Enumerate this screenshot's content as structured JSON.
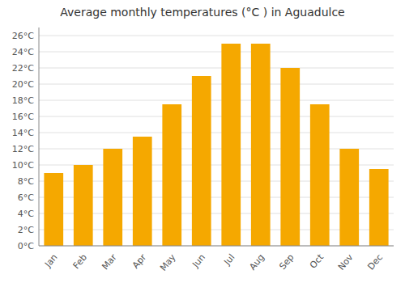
{
  "chart_data": {
    "type": "bar",
    "title": "Average monthly temperatures (°C ) in Aguadulce",
    "categories": [
      "Jan",
      "Feb",
      "Mar",
      "Apr",
      "May",
      "Jun",
      "Jul",
      "Aug",
      "Sep",
      "Oct",
      "Nov",
      "Dec"
    ],
    "values": [
      9.0,
      10.0,
      12.0,
      13.5,
      17.5,
      21.0,
      25.0,
      25.0,
      22.0,
      17.5,
      12.0,
      9.5
    ],
    "color": "#F5A800",
    "ylim": [
      0,
      27
    ],
    "yticks": [
      {
        "value": 0,
        "label": "0°C"
      },
      {
        "value": 2,
        "label": "2°C"
      },
      {
        "value": 4,
        "label": "4°C"
      },
      {
        "value": 6,
        "label": "6°C"
      },
      {
        "value": 8,
        "label": "8°C"
      },
      {
        "value": 10,
        "label": "10°C"
      },
      {
        "value": 12,
        "label": "12°C"
      },
      {
        "value": 14,
        "label": "14°C"
      },
      {
        "value": 16,
        "label": "16°C"
      },
      {
        "value": 18,
        "label": "18°C"
      },
      {
        "value": 20,
        "label": "20°C"
      },
      {
        "value": 22,
        "label": "22°C"
      },
      {
        "value": 24,
        "label": "24°C"
      },
      {
        "value": 26,
        "label": "26°C"
      }
    ],
    "grid": true
  }
}
